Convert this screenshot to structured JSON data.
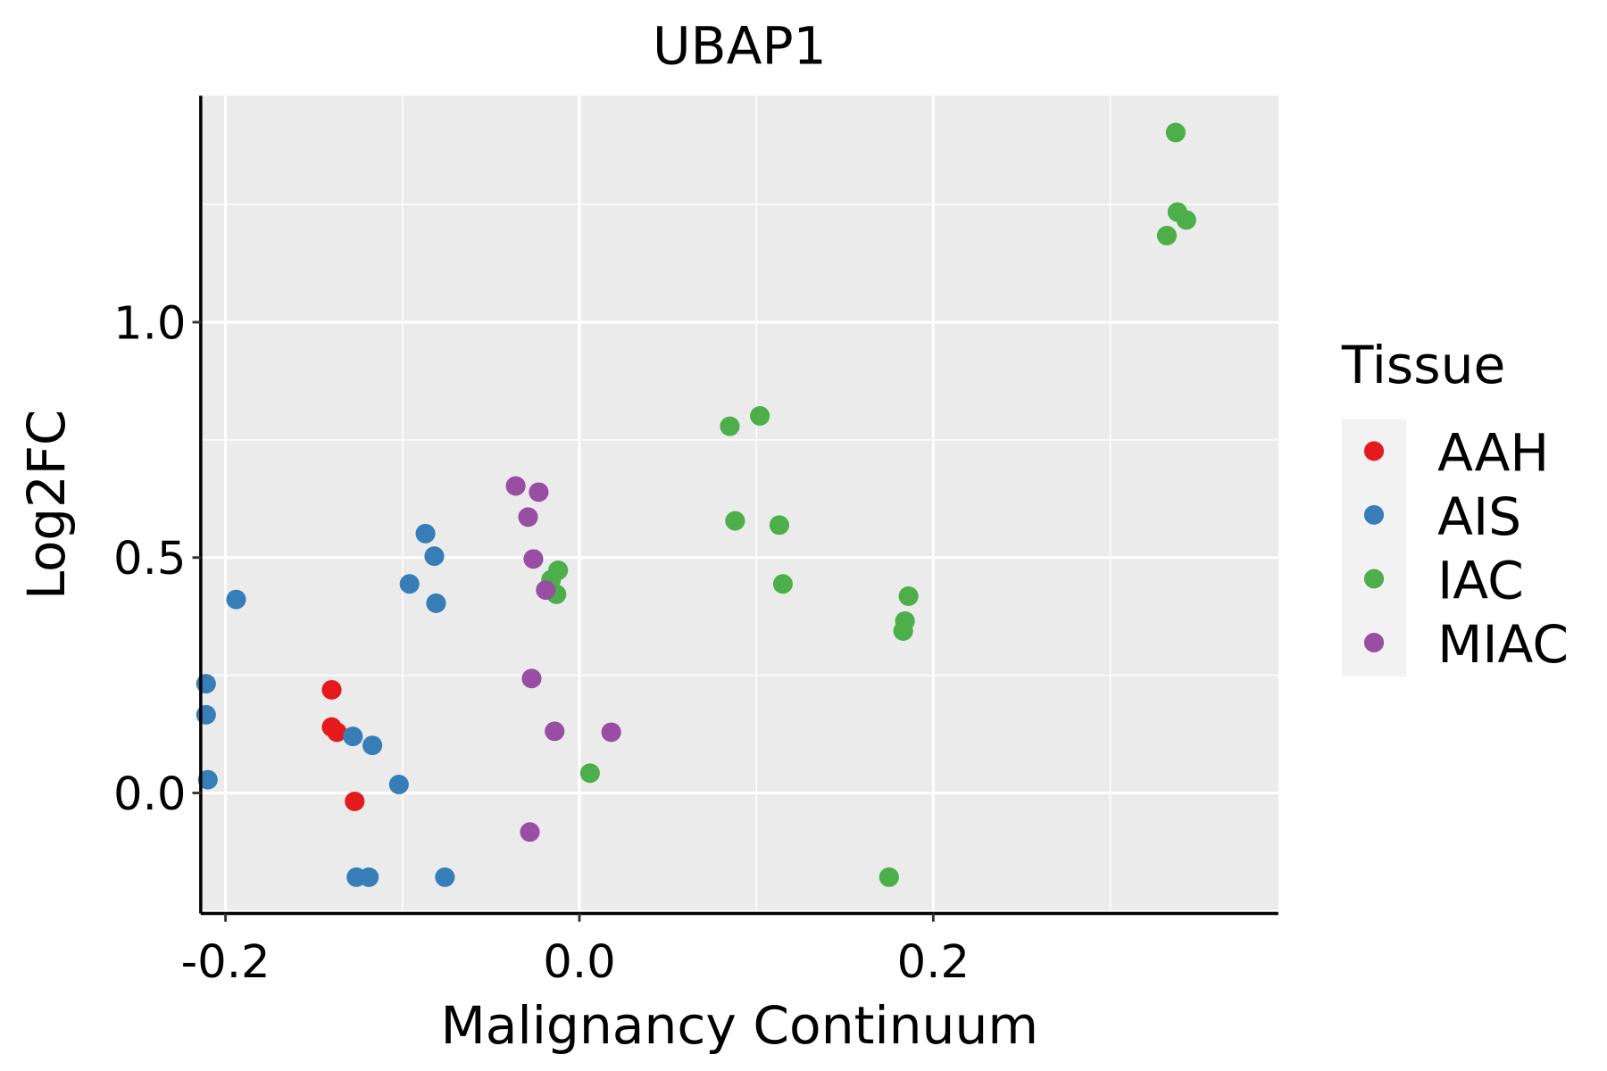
{
  "chart_data": {
    "type": "scatter",
    "title": "UBAP1",
    "xlabel": "Malignancy Continuum",
    "ylabel": "Log2FC",
    "xlim": [
      -0.214,
      0.395
    ],
    "ylim": [
      -0.256,
      1.481
    ],
    "x_ticks": [
      -0.2,
      0.0,
      0.2
    ],
    "x_tick_labels": [
      "-0.2",
      "0.0",
      "0.2"
    ],
    "y_ticks": [
      0.0,
      0.5,
      1.0
    ],
    "y_tick_labels": [
      "0.0",
      "0.5",
      "1.0"
    ],
    "grid": true,
    "legend": {
      "title": "Tissue",
      "placement": "right"
    },
    "series": [
      {
        "name": "AAH",
        "color": "#E41A1C",
        "points": [
          [
            -0.14,
            0.219
          ],
          [
            -0.14,
            0.14
          ],
          [
            -0.137,
            0.129
          ],
          [
            -0.127,
            -0.018
          ]
        ]
      },
      {
        "name": "AIS",
        "color": "#377EB8",
        "points": [
          [
            -0.194,
            0.411
          ],
          [
            -0.211,
            0.232
          ],
          [
            -0.211,
            0.166
          ],
          [
            -0.21,
            0.028
          ],
          [
            -0.128,
            0.12
          ],
          [
            -0.117,
            0.101
          ],
          [
            -0.102,
            0.018
          ],
          [
            -0.087,
            0.551
          ],
          [
            -0.082,
            0.503
          ],
          [
            -0.096,
            0.444
          ],
          [
            -0.081,
            0.403
          ],
          [
            -0.126,
            -0.179
          ],
          [
            -0.119,
            -0.179
          ],
          [
            -0.076,
            -0.179
          ]
        ]
      },
      {
        "name": "IAC",
        "color": "#4DAF4A",
        "points": [
          [
            0.337,
            1.403
          ],
          [
            0.338,
            1.234
          ],
          [
            0.343,
            1.217
          ],
          [
            0.332,
            1.184
          ],
          [
            0.085,
            0.779
          ],
          [
            0.102,
            0.801
          ],
          [
            0.088,
            0.578
          ],
          [
            0.113,
            0.569
          ],
          [
            0.115,
            0.444
          ],
          [
            0.186,
            0.418
          ],
          [
            0.184,
            0.365
          ],
          [
            0.183,
            0.344
          ],
          [
            -0.012,
            0.473
          ],
          [
            -0.016,
            0.453
          ],
          [
            -0.013,
            0.422
          ],
          [
            0.006,
            0.042
          ],
          [
            0.175,
            -0.179
          ]
        ]
      },
      {
        "name": "MIAC",
        "color": "#984EA3",
        "points": [
          [
            -0.036,
            0.652
          ],
          [
            -0.023,
            0.639
          ],
          [
            -0.029,
            0.586
          ],
          [
            -0.026,
            0.497
          ],
          [
            -0.019,
            0.431
          ],
          [
            -0.027,
            0.243
          ],
          [
            -0.014,
            0.131
          ],
          [
            0.018,
            0.129
          ],
          [
            -0.028,
            -0.083
          ]
        ]
      }
    ]
  }
}
